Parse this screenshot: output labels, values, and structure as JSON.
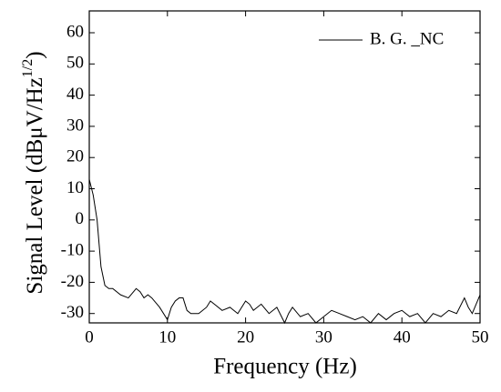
{
  "chart_data": {
    "type": "line",
    "xlabel": "Frequency (Hz)",
    "ylabel": [
      "Signal Level (dBμV/Hz",
      "1/2",
      ")"
    ],
    "x": [
      0,
      0.5,
      1,
      1.5,
      2,
      2.5,
      3,
      4,
      5,
      6,
      6.5,
      7,
      7.5,
      8,
      9,
      10,
      10.5,
      11,
      11.5,
      12,
      12.5,
      13,
      14,
      15,
      15.5,
      16,
      17,
      18,
      19,
      20,
      20.5,
      21,
      22,
      23,
      24,
      25,
      25.5,
      26,
      27,
      28,
      29,
      30,
      31,
      32,
      33,
      34,
      35,
      36,
      37,
      38,
      39,
      40,
      41,
      42,
      43,
      44,
      45,
      46,
      47,
      48,
      48.5,
      49,
      49.5,
      50
    ],
    "series": [
      {
        "name": "B. G. _NC",
        "color": "#000000",
        "values": [
          13,
          8,
          0,
          -15,
          -21,
          -22,
          -22,
          -24,
          -25,
          -22,
          -23,
          -25,
          -24,
          -25,
          -28,
          -32,
          -28,
          -26,
          -25,
          -25,
          -29,
          -30,
          -30,
          -28,
          -26,
          -27,
          -29,
          -28,
          -30,
          -26,
          -27,
          -29,
          -27,
          -30,
          -28,
          -33,
          -30,
          -28,
          -31,
          -30,
          -33,
          -31,
          -29,
          -30,
          -31,
          -32,
          -31,
          -33,
          -30,
          -32,
          -30,
          -29,
          -31,
          -30,
          -33,
          -30,
          -31,
          -29,
          -30,
          -25,
          -28,
          -30,
          -27,
          -24
        ]
      }
    ],
    "xlim": [
      0,
      50
    ],
    "xticks": [
      0,
      10,
      20,
      30,
      40,
      50
    ],
    "ylim": [
      -33,
      67
    ],
    "yticks": [
      -30,
      -20,
      -10,
      0,
      10,
      20,
      30,
      40,
      50,
      60
    ],
    "legend": "upper right"
  }
}
